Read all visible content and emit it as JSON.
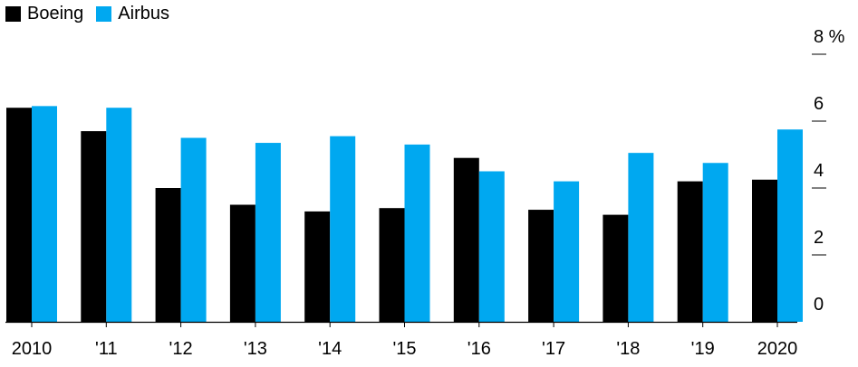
{
  "chart_data": {
    "type": "bar",
    "categories": [
      "2010",
      "'11",
      "'12",
      "'13",
      "'14",
      "'15",
      "'16",
      "'17",
      "'18",
      "'19",
      "2020"
    ],
    "series": [
      {
        "name": "Boeing",
        "color": "#000000",
        "values": [
          6.4,
          5.7,
          4.0,
          3.5,
          3.3,
          3.4,
          4.9,
          3.35,
          3.2,
          4.2,
          4.25
        ]
      },
      {
        "name": "Airbus",
        "color": "#00a8f0",
        "values": [
          6.45,
          6.4,
          5.5,
          5.35,
          5.55,
          5.3,
          4.5,
          4.2,
          5.05,
          4.75,
          5.75
        ]
      }
    ],
    "yticks": [
      "0",
      "2",
      "4",
      "6",
      "8 %"
    ],
    "ylim": [
      0,
      8
    ],
    "title": "",
    "xlabel": "",
    "ylabel": "",
    "legend": "top-left",
    "grid": false
  }
}
